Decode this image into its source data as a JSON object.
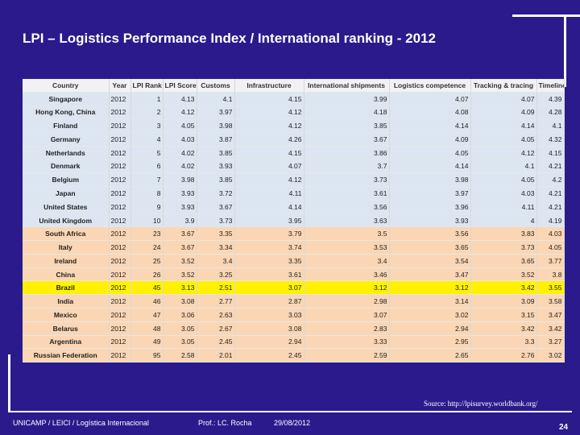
{
  "title": "LPI – Logistics Performance Index / International ranking - 2012",
  "table": {
    "headers": [
      "Country",
      "Year",
      "LPI Rank",
      "LPI Score",
      "Customs",
      "Infrastructure",
      "International shipments",
      "Logistics competence",
      "Tracking & tracing",
      "Timeliness"
    ],
    "rows": [
      {
        "style": "blue",
        "cells": [
          "Singapore",
          "2012",
          "1",
          "4.13",
          "4.1",
          "4.15",
          "3.99",
          "4.07",
          "4.07",
          "4.39"
        ]
      },
      {
        "style": "blue",
        "cells": [
          "Hong Kong, China",
          "2012",
          "2",
          "4.12",
          "3.97",
          "4.12",
          "4.18",
          "4.08",
          "4.09",
          "4.28"
        ]
      },
      {
        "style": "blue",
        "cells": [
          "Finland",
          "2012",
          "3",
          "4.05",
          "3.98",
          "4.12",
          "3.85",
          "4.14",
          "4.14",
          "4.1"
        ]
      },
      {
        "style": "blue",
        "cells": [
          "Germany",
          "2012",
          "4",
          "4.03",
          "3.87",
          "4.26",
          "3.67",
          "4.09",
          "4.05",
          "4.32"
        ]
      },
      {
        "style": "blue",
        "cells": [
          "Netherlands",
          "2012",
          "5",
          "4.02",
          "3.85",
          "4.15",
          "3.86",
          "4.05",
          "4.12",
          "4.15"
        ]
      },
      {
        "style": "blue",
        "cells": [
          "Denmark",
          "2012",
          "6",
          "4.02",
          "3.93",
          "4.07",
          "3.7",
          "4.14",
          "4.1",
          "4.21"
        ]
      },
      {
        "style": "blue",
        "cells": [
          "Belgium",
          "2012",
          "7",
          "3.98",
          "3.85",
          "4.12",
          "3.73",
          "3.98",
          "4.05",
          "4.2"
        ]
      },
      {
        "style": "blue",
        "cells": [
          "Japan",
          "2012",
          "8",
          "3.93",
          "3.72",
          "4.11",
          "3.61",
          "3.97",
          "4.03",
          "4.21"
        ]
      },
      {
        "style": "blue",
        "cells": [
          "United States",
          "2012",
          "9",
          "3.93",
          "3.67",
          "4.14",
          "3.56",
          "3.96",
          "4.11",
          "4.21"
        ]
      },
      {
        "style": "blue",
        "cells": [
          "United Kingdom",
          "2012",
          "10",
          "3.9",
          "3.73",
          "3.95",
          "3.63",
          "3.93",
          "4",
          "4.19"
        ]
      },
      {
        "style": "peach",
        "cells": [
          "South Africa",
          "2012",
          "23",
          "3.67",
          "3.35",
          "3.79",
          "3.5",
          "3.56",
          "3.83",
          "4.03"
        ]
      },
      {
        "style": "peach",
        "cells": [
          "Italy",
          "2012",
          "24",
          "3.67",
          "3.34",
          "3.74",
          "3.53",
          "3.65",
          "3.73",
          "4.05"
        ]
      },
      {
        "style": "peach",
        "cells": [
          "Ireland",
          "2012",
          "25",
          "3.52",
          "3.4",
          "3.35",
          "3.4",
          "3.54",
          "3.65",
          "3.77"
        ]
      },
      {
        "style": "peach",
        "cells": [
          "China",
          "2012",
          "26",
          "3.52",
          "3.25",
          "3.61",
          "3.46",
          "3.47",
          "3.52",
          "3.8"
        ]
      },
      {
        "style": "yellow",
        "cells": [
          "Brazil",
          "2012",
          "45",
          "3.13",
          "2.51",
          "3.07",
          "3.12",
          "3.12",
          "3.42",
          "3.55"
        ]
      },
      {
        "style": "peach",
        "cells": [
          "India",
          "2012",
          "46",
          "3.08",
          "2.77",
          "2.87",
          "2.98",
          "3.14",
          "3.09",
          "3.58"
        ]
      },
      {
        "style": "peach",
        "cells": [
          "Mexico",
          "2012",
          "47",
          "3.06",
          "2.63",
          "3.03",
          "3.07",
          "3.02",
          "3.15",
          "3.47"
        ]
      },
      {
        "style": "peach",
        "cells": [
          "Belarus",
          "2012",
          "48",
          "3.05",
          "2.67",
          "3.08",
          "2.83",
          "2.94",
          "3.42",
          "3.42"
        ]
      },
      {
        "style": "peach",
        "cells": [
          "Argentina",
          "2012",
          "49",
          "3.05",
          "2.45",
          "2.94",
          "3.33",
          "2.95",
          "3.3",
          "3.27"
        ]
      },
      {
        "style": "peach",
        "cells": [
          "Russian Federation",
          "2012",
          "95",
          "2.58",
          "2.01",
          "2.45",
          "2.59",
          "2.65",
          "2.76",
          "3.02"
        ]
      }
    ]
  },
  "source": "Source: http://lpisurvey.worldbank.org/",
  "footer": {
    "course": "UNICAMP / LEICI / Logística Internacional",
    "professor": "Prof.: LC. Rocha",
    "date": "29/08/2012",
    "page": "24"
  }
}
